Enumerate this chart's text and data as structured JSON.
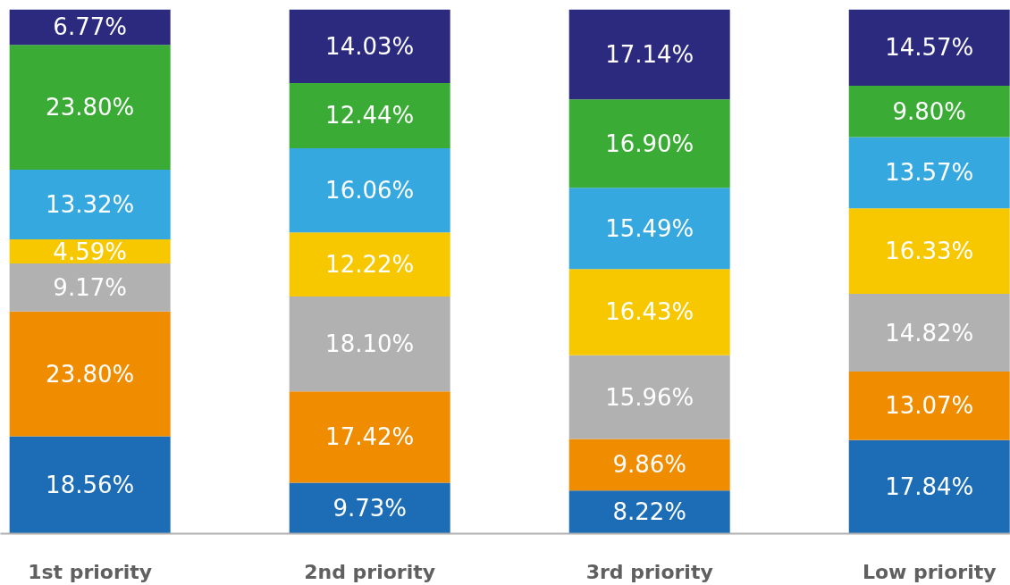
{
  "chart_data": {
    "type": "bar",
    "stacked": true,
    "categories": [
      "1st priority",
      "2nd priority",
      "3rd priority",
      "Low priority"
    ],
    "tick_labels": "x",
    "series": [
      {
        "color": "#1c6db5",
        "values": [
          18.56,
          9.73,
          8.22,
          17.84
        ],
        "value_labels": [
          "18.56%",
          "9.73%",
          "8.22%",
          "17.84%"
        ]
      },
      {
        "color": "#f08c00",
        "values": [
          23.8,
          17.42,
          9.86,
          13.07
        ],
        "value_labels": [
          "23.80%",
          "17.42%",
          "9.86%",
          "13.07%"
        ]
      },
      {
        "color": "#b1b1b1",
        "values": [
          9.17,
          18.1,
          15.96,
          14.82
        ],
        "value_labels": [
          "9.17%",
          "18.10%",
          "15.96%",
          "14.82%"
        ]
      },
      {
        "color": "#f7c800",
        "values": [
          4.59,
          12.22,
          16.43,
          16.33
        ],
        "value_labels": [
          "4.59%",
          "12.22%",
          "16.43%",
          "16.33%"
        ]
      },
      {
        "color": "#35a8e0",
        "values": [
          13.32,
          16.06,
          15.49,
          13.57
        ],
        "value_labels": [
          "13.32%",
          "16.06%",
          "15.49%",
          "13.57%"
        ]
      },
      {
        "color": "#3aab35",
        "values": [
          23.8,
          12.44,
          16.9,
          9.8
        ],
        "value_labels": [
          "23.80%",
          "12.44%",
          "16.90%",
          "9.80%"
        ]
      },
      {
        "color": "#2b2a7f",
        "values": [
          6.77,
          14.03,
          17.14,
          14.57
        ],
        "value_labels": [
          "6.77%",
          "14.03%",
          "17.14%",
          "14.57%"
        ]
      }
    ]
  }
}
